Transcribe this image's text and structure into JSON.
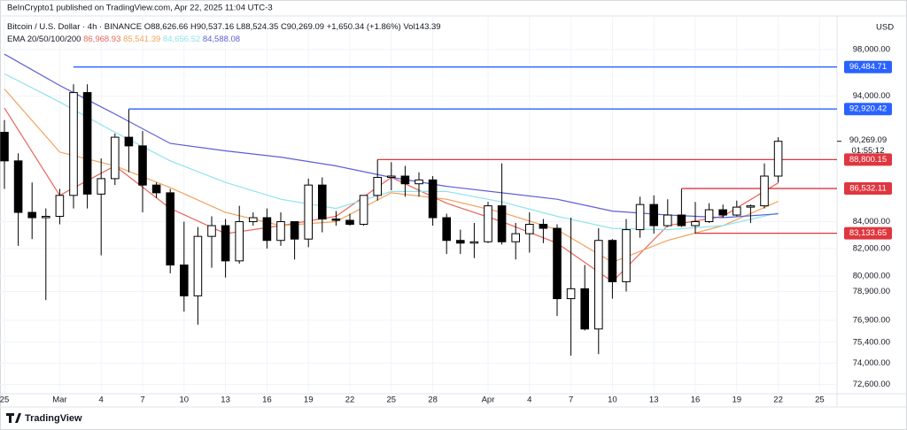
{
  "header": {
    "published": "BeInCrypto1 published on TradingView.com, Apr 22, 2025 11:04 UTC-3",
    "symbol": "Bitcoin / U.S. Dollar · 4h · BINANCE",
    "ohlc": [
      "O88,626.66",
      "H90,537.16",
      "L88,524.35",
      "C90,269.09",
      "+1,650.34 (+1.86%)",
      "Vol143.39"
    ],
    "ema_label": "EMA 20/50/100/200",
    "currency": "USD"
  },
  "footer": {
    "brand": "TradingView"
  },
  "chart_data": {
    "type": "candlestick",
    "log_scale": true,
    "grid": true,
    "up_color": "#ffffff",
    "down_color": "#000000",
    "xlim": [
      "2025-02-25",
      "2025-04-26"
    ],
    "ylim": [
      72000,
      101000
    ],
    "xticks": [
      {
        "value": "2025-02-25",
        "label": "25"
      },
      {
        "value": "2025-03-01",
        "label": "Mar"
      },
      {
        "value": "2025-03-04",
        "label": "4"
      },
      {
        "value": "2025-03-07",
        "label": "7"
      },
      {
        "value": "2025-03-10",
        "label": "10"
      },
      {
        "value": "2025-03-13",
        "label": "13"
      },
      {
        "value": "2025-03-16",
        "label": "16"
      },
      {
        "value": "2025-03-19",
        "label": "19"
      },
      {
        "value": "2025-03-22",
        "label": "22"
      },
      {
        "value": "2025-03-25",
        "label": "25"
      },
      {
        "value": "2025-03-28",
        "label": "28"
      },
      {
        "value": "2025-04-01",
        "label": "Apr"
      },
      {
        "value": "2025-04-04",
        "label": "4"
      },
      {
        "value": "2025-04-07",
        "label": "7"
      },
      {
        "value": "2025-04-10",
        "label": "10"
      },
      {
        "value": "2025-04-13",
        "label": "13"
      },
      {
        "value": "2025-04-16",
        "label": "16"
      },
      {
        "value": "2025-04-19",
        "label": "19"
      },
      {
        "value": "2025-04-22",
        "label": "22"
      },
      {
        "value": "2025-04-25",
        "label": "25"
      }
    ],
    "yticks": [
      {
        "value": 98000,
        "label": "98,000.00"
      },
      {
        "value": 94000,
        "label": "94,000.00"
      },
      {
        "value": 84000,
        "label": "84,000.00"
      },
      {
        "value": 82000,
        "label": "82,000.00"
      },
      {
        "value": 80000,
        "label": "80,000.00"
      },
      {
        "value": 78900,
        "label": "78,900.00"
      },
      {
        "value": 76900,
        "label": "76,900.00"
      },
      {
        "value": 75400,
        "label": "75,400.00"
      },
      {
        "value": 74000,
        "label": "74,000.00"
      },
      {
        "value": 72600,
        "label": "72,600.00"
      }
    ],
    "x": [
      "2025-02-25",
      "2025-02-26",
      "2025-02-27",
      "2025-02-28",
      "2025-03-01",
      "2025-03-02",
      "2025-03-03",
      "2025-03-04",
      "2025-03-05",
      "2025-03-06",
      "2025-03-07",
      "2025-03-08",
      "2025-03-09",
      "2025-03-10",
      "2025-03-11",
      "2025-03-12",
      "2025-03-13",
      "2025-03-14",
      "2025-03-15",
      "2025-03-16",
      "2025-03-17",
      "2025-03-18",
      "2025-03-19",
      "2025-03-20",
      "2025-03-21",
      "2025-03-22",
      "2025-03-23",
      "2025-03-24",
      "2025-03-25",
      "2025-03-26",
      "2025-03-27",
      "2025-03-28",
      "2025-03-29",
      "2025-03-30",
      "2025-03-31",
      "2025-04-01",
      "2025-04-02",
      "2025-04-03",
      "2025-04-04",
      "2025-04-05",
      "2025-04-06",
      "2025-04-07",
      "2025-04-08",
      "2025-04-09",
      "2025-04-10",
      "2025-04-11",
      "2025-04-12",
      "2025-04-13",
      "2025-04-14",
      "2025-04-15",
      "2025-04-16",
      "2025-04-17",
      "2025-04-18",
      "2025-04-19",
      "2025-04-20",
      "2025-04-21",
      "2025-04-22"
    ],
    "open": [
      91000,
      88700,
      84700,
      84300,
      84400,
      86000,
      94300,
      86100,
      87300,
      90600,
      89900,
      86800,
      86200,
      80800,
      78600,
      82900,
      83700,
      81100,
      84000,
      84300,
      82600,
      84000,
      82700,
      86800,
      84200,
      84100,
      83800,
      86000,
      87400,
      87500,
      86900,
      87200,
      84300,
      82600,
      82400,
      82500,
      85200,
      82500,
      83100,
      83800,
      83500,
      78400,
      79100,
      76300,
      82600,
      79600,
      83400,
      85300,
      83700,
      84500,
      83700,
      84000,
      84900,
      84500,
      85100,
      85200,
      87500
    ],
    "high": [
      92000,
      89300,
      87000,
      85000,
      86500,
      95000,
      95000,
      88900,
      90900,
      92900,
      91100,
      87000,
      86500,
      84000,
      83600,
      84400,
      84200,
      85200,
      84700,
      85000,
      84700,
      84000,
      87300,
      87400,
      84800,
      84600,
      86000,
      88800,
      88600,
      88300,
      87800,
      87500,
      84600,
      83400,
      83900,
      85500,
      88500,
      83900,
      84700,
      84200,
      83800,
      84300,
      80800,
      83500,
      82700,
      84200,
      85900,
      86000,
      85700,
      86500,
      85500,
      85400,
      85300,
      85600,
      85300,
      88500,
      90600
    ],
    "low": [
      86500,
      82200,
      82700,
      78300,
      83800,
      85000,
      85000,
      81500,
      86800,
      87800,
      84700,
      85800,
      80200,
      77500,
      76600,
      80600,
      79900,
      80900,
      83700,
      82000,
      82200,
      81200,
      82100,
      83200,
      83700,
      83700,
      83700,
      85600,
      86400,
      85900,
      85900,
      83700,
      81600,
      81600,
      81300,
      82400,
      82300,
      81200,
      81700,
      82400,
      77200,
      74500,
      76200,
      74600,
      78400,
      78900,
      82800,
      83100,
      83600,
      83600,
      83100,
      83900,
      84300,
      84400,
      83900,
      85000,
      87000
    ],
    "close": [
      88700,
      84700,
      84300,
      84400,
      86000,
      94300,
      86100,
      87300,
      90600,
      89900,
      86800,
      86200,
      80800,
      78600,
      82900,
      83700,
      81100,
      84000,
      84300,
      82600,
      84000,
      82700,
      86800,
      84200,
      84100,
      83800,
      86000,
      87400,
      87500,
      86900,
      87200,
      84300,
      82600,
      82400,
      82500,
      85200,
      82500,
      83100,
      83800,
      83500,
      78400,
      79100,
      76300,
      82600,
      79600,
      83400,
      85300,
      83700,
      84500,
      83700,
      84000,
      84900,
      84500,
      85100,
      85200,
      87500,
      90269.09
    ],
    "series": [
      {
        "name": "EMA 20",
        "color": "#e8675b",
        "legend_value": "86,968.93",
        "x": [
          "2025-02-25",
          "2025-03-01",
          "2025-03-05",
          "2025-03-09",
          "2025-03-13",
          "2025-03-17",
          "2025-03-21",
          "2025-03-25",
          "2025-03-29",
          "2025-04-02",
          "2025-04-06",
          "2025-04-10",
          "2025-04-14",
          "2025-04-18",
          "2025-04-22"
        ],
        "values": [
          93000,
          86000,
          88300,
          85000,
          83100,
          83700,
          84400,
          87400,
          85400,
          84000,
          82400,
          79600,
          83700,
          84400,
          86968.93
        ]
      },
      {
        "name": "EMA 50",
        "color": "#f2a25a",
        "legend_value": "85,541.39",
        "x": [
          "2025-02-25",
          "2025-03-01",
          "2025-03-05",
          "2025-03-09",
          "2025-03-13",
          "2025-03-17",
          "2025-03-21",
          "2025-03-25",
          "2025-03-29",
          "2025-04-02",
          "2025-04-06",
          "2025-04-10",
          "2025-04-14",
          "2025-04-18",
          "2025-04-22"
        ],
        "values": [
          94600,
          89400,
          88300,
          86600,
          84700,
          83700,
          84000,
          86200,
          85700,
          84700,
          83400,
          81000,
          82600,
          83700,
          85541.39
        ]
      },
      {
        "name": "EMA 100",
        "color": "#8fe3ee",
        "legend_value": "84,656.52",
        "x": [
          "2025-02-25",
          "2025-03-01",
          "2025-03-05",
          "2025-03-09",
          "2025-03-13",
          "2025-03-17",
          "2025-03-21",
          "2025-03-25",
          "2025-03-29",
          "2025-04-02",
          "2025-04-06",
          "2025-04-10",
          "2025-04-14",
          "2025-04-18",
          "2025-04-22"
        ],
        "values": [
          95900,
          93500,
          91000,
          88700,
          87000,
          85700,
          85000,
          86300,
          86300,
          85500,
          84400,
          83500,
          83400,
          83700,
          84656.52
        ]
      },
      {
        "name": "EMA 200",
        "color": "#5b5fd6",
        "legend_value": "84,588.08",
        "x": [
          "2025-02-25",
          "2025-03-01",
          "2025-03-05",
          "2025-03-09",
          "2025-03-13",
          "2025-03-17",
          "2025-03-21",
          "2025-03-25",
          "2025-03-29",
          "2025-04-02",
          "2025-04-06",
          "2025-04-10",
          "2025-04-14",
          "2025-04-18",
          "2025-04-22"
        ],
        "values": [
          97600,
          94900,
          92500,
          90100,
          89500,
          89000,
          88300,
          87400,
          86700,
          86200,
          85700,
          84800,
          84500,
          84300,
          84588.08
        ]
      }
    ],
    "levels": [
      {
        "value": 96484.71,
        "label": "96,484.71",
        "color": "#2962ff",
        "start": "2025-03-02"
      },
      {
        "value": 92920.42,
        "label": "92,920.42",
        "color": "#2962ff",
        "start": "2025-03-06"
      },
      {
        "value": 88800.15,
        "label": "88,800.15",
        "color": "#e0363f",
        "start": "2025-03-24"
      },
      {
        "value": 86532.11,
        "label": "86,532.11",
        "color": "#e0363f",
        "start": "2025-04-15"
      },
      {
        "value": 83133.65,
        "label": "83,133.65",
        "color": "#e0363f",
        "start": "2025-04-16"
      }
    ],
    "last_price": {
      "value": 90269.09,
      "label": "90,269.09"
    },
    "countdown": "01:55:12"
  }
}
